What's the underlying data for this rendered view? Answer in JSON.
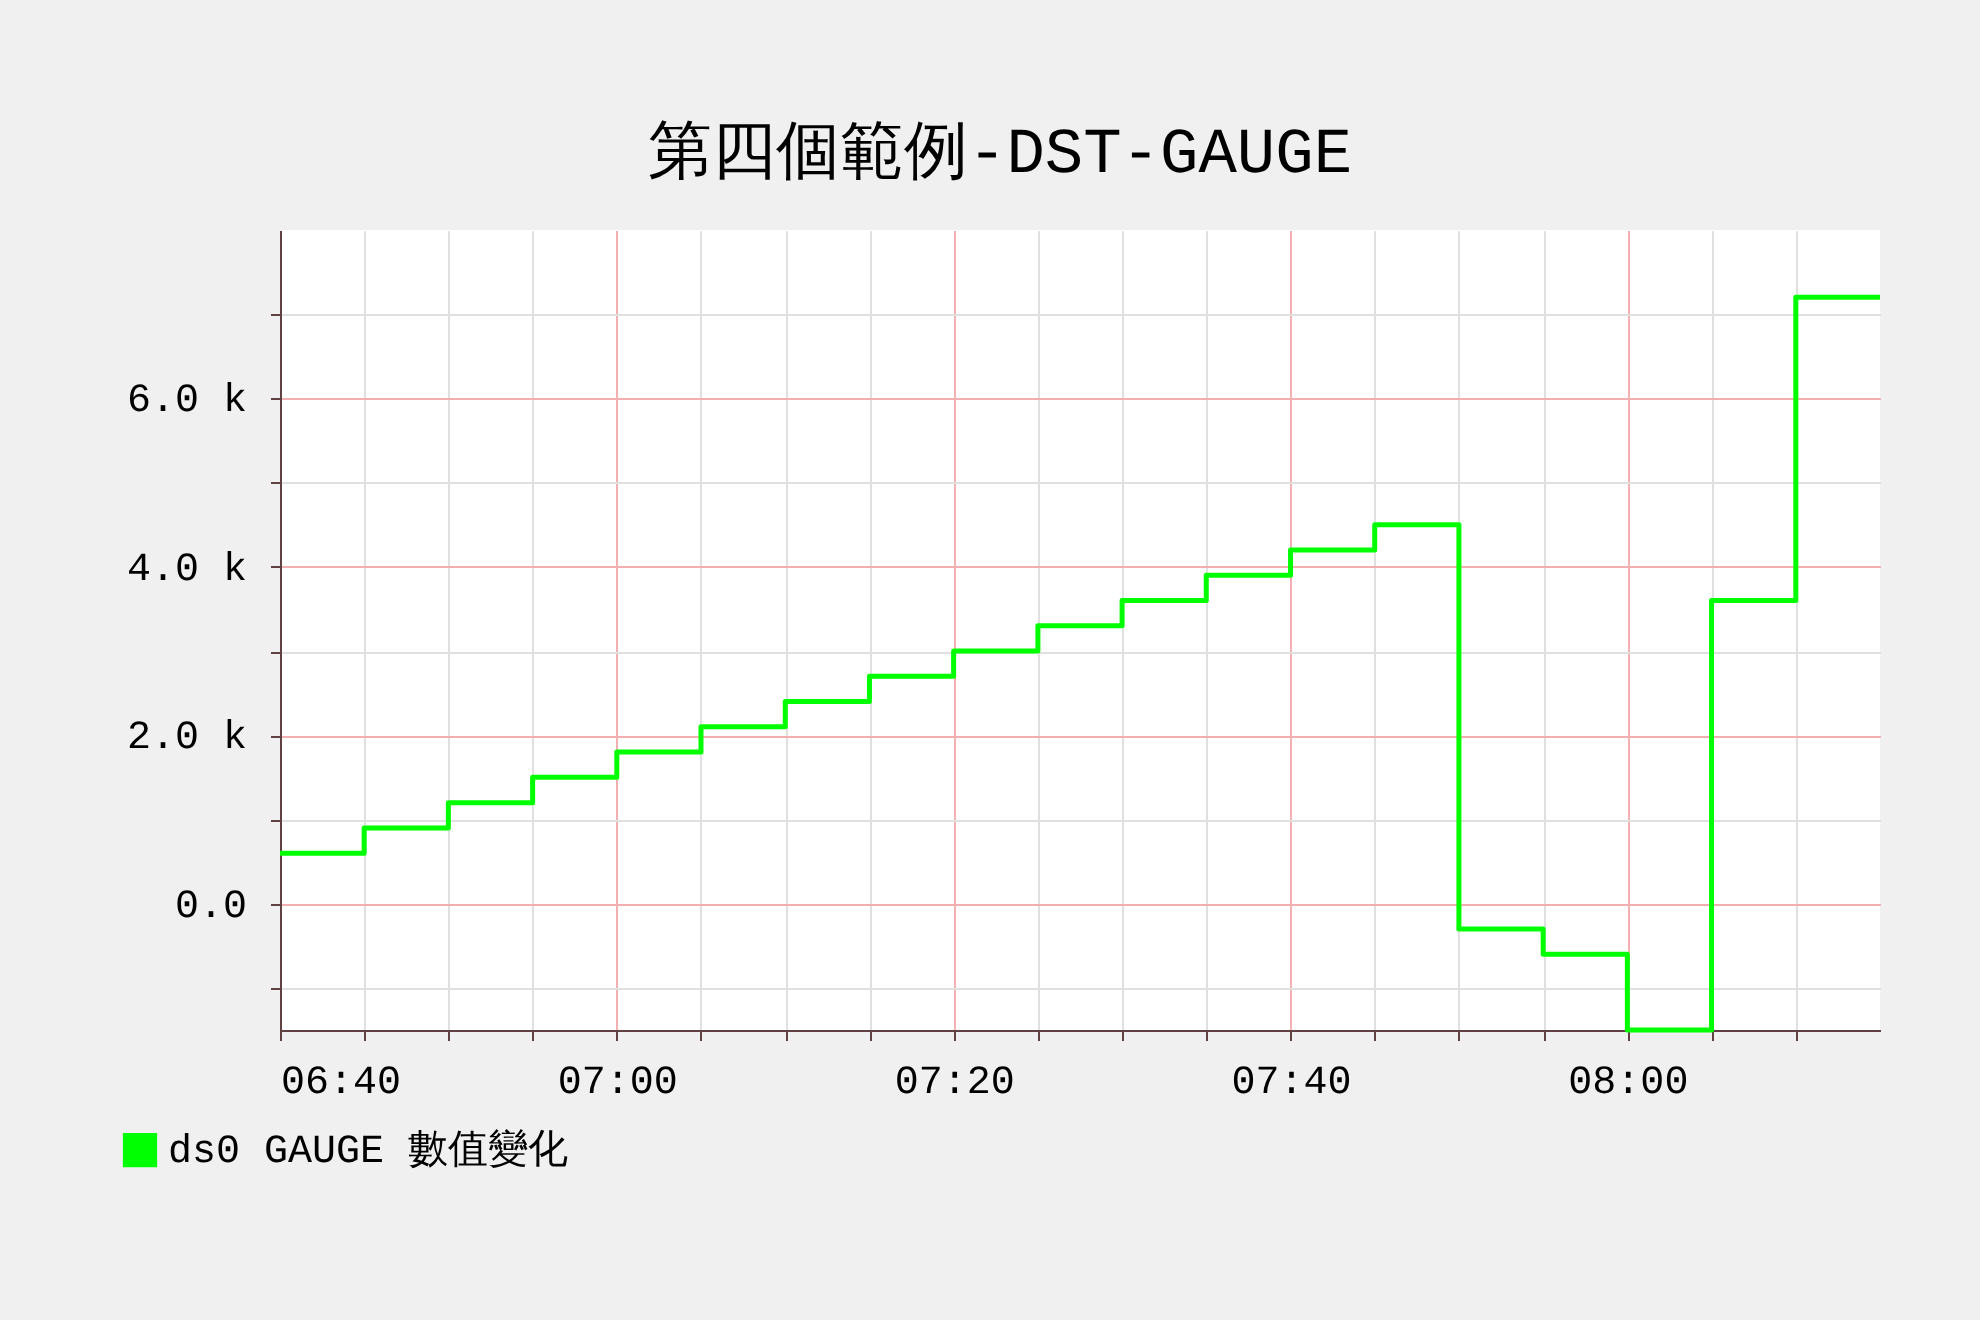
{
  "chart_data": {
    "type": "step",
    "title": "第四個範例-DST-GAUGE",
    "x": [
      6.6667,
      6.75,
      6.8333,
      6.9167,
      7.0,
      7.0833,
      7.1667,
      7.25,
      7.3333,
      7.4167,
      7.5,
      7.5833,
      7.6667,
      7.75,
      7.8333,
      7.9167,
      8.0,
      8.0833,
      8.1667,
      8.25
    ],
    "series": [
      {
        "name": "ds0 GAUGE 數值變化",
        "color": "#00ff00",
        "values": [
          600,
          900,
          1200,
          1500,
          1800,
          2100,
          2400,
          2700,
          3000,
          3300,
          3600,
          3900,
          4200,
          4500,
          -300,
          -600,
          -1500,
          3600,
          7200,
          7200
        ]
      }
    ],
    "xlim": [
      6.6667,
      8.25
    ],
    "xticks": [
      {
        "value": 6.6667,
        "label": "06:40"
      },
      {
        "value": 6.75,
        "label": null
      },
      {
        "value": 6.8333,
        "label": null
      },
      {
        "value": 6.9167,
        "label": null
      },
      {
        "value": 7.0,
        "label": "07:00"
      },
      {
        "value": 7.0833,
        "label": null
      },
      {
        "value": 7.1667,
        "label": null
      },
      {
        "value": 7.25,
        "label": null
      },
      {
        "value": 7.3333,
        "label": "07:20"
      },
      {
        "value": 7.4167,
        "label": null
      },
      {
        "value": 7.5,
        "label": null
      },
      {
        "value": 7.5833,
        "label": null
      },
      {
        "value": 7.6667,
        "label": "07:40"
      },
      {
        "value": 7.75,
        "label": null
      },
      {
        "value": 7.8333,
        "label": null
      },
      {
        "value": 7.9167,
        "label": null
      },
      {
        "value": 8.0,
        "label": "08:00"
      },
      {
        "value": 8.0833,
        "label": null
      },
      {
        "value": 8.1667,
        "label": null
      }
    ],
    "ylim": [
      -1500,
      8000
    ],
    "yticks": [
      {
        "value": -1000,
        "label": null
      },
      {
        "value": 0,
        "label": "0.0"
      },
      {
        "value": 1000,
        "label": null
      },
      {
        "value": 2000,
        "label": "2.0 k"
      },
      {
        "value": 3000,
        "label": null
      },
      {
        "value": 4000,
        "label": "4.0 k"
      },
      {
        "value": 5000,
        "label": null
      },
      {
        "value": 6000,
        "label": "6.0 k"
      },
      {
        "value": 7000,
        "label": null
      }
    ],
    "grid": true,
    "legend": "bottom left"
  }
}
